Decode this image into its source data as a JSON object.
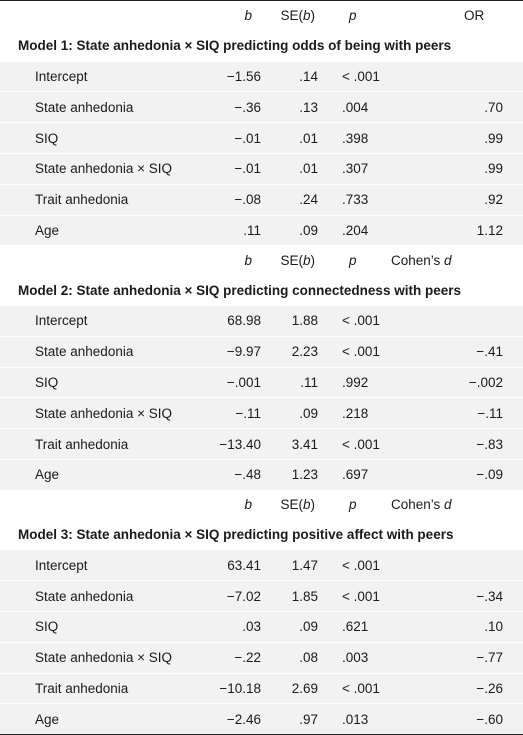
{
  "header": {
    "b": "b",
    "se_prefix": "SE(",
    "se_var": "b",
    "se_suffix": ")",
    "p": "p",
    "or": "OR",
    "cohen_prefix": "Cohen’s ",
    "cohen_var": "d"
  },
  "model1": {
    "title": "Model 1: State anhedonia × SIQ predicting odds of being with peers",
    "rows": [
      {
        "label": "Intercept",
        "b": "−1.56",
        "se": ".14",
        "p": "< .001",
        "or": ""
      },
      {
        "label": "State anhedonia",
        "b": "−.36",
        "se": ".13",
        "p": ".004",
        "or": ".70"
      },
      {
        "label": "SIQ",
        "b": "−.01",
        "se": ".01",
        "p": ".398",
        "or": ".99"
      },
      {
        "label": "State anhedonia × SIQ",
        "b": "−.01",
        "se": ".01",
        "p": ".307",
        "or": ".99"
      },
      {
        "label": "Trait anhedonia",
        "b": "−.08",
        "se": ".24",
        "p": ".733",
        "or": ".92"
      },
      {
        "label": "Age",
        "b": ".11",
        "se": ".09",
        "p": ".204",
        "or": "1.12"
      }
    ]
  },
  "model2": {
    "title": "Model 2: State anhedonia × SIQ predicting connectedness with peers",
    "rows": [
      {
        "label": "Intercept",
        "b": "68.98",
        "se": "1.88",
        "p": "< .001",
        "d": ""
      },
      {
        "label": "State anhedonia",
        "b": "−9.97",
        "se": "2.23",
        "p": "< .001",
        "d": "−.41"
      },
      {
        "label": "SIQ",
        "b": "−.001",
        "se": ".11",
        "p": ".992",
        "d": "−.002"
      },
      {
        "label": "State anhedonia × SIQ",
        "b": "−.11",
        "se": ".09",
        "p": ".218",
        "d": "−.11"
      },
      {
        "label": "Trait anhedonia",
        "b": "−13.40",
        "se": "3.41",
        "p": "< .001",
        "d": "−.83"
      },
      {
        "label": "Age",
        "b": "−.48",
        "se": "1.23",
        "p": ".697",
        "d": "−.09"
      }
    ]
  },
  "model3": {
    "title": "Model 3: State anhedonia × SIQ predicting positive affect with peers",
    "rows": [
      {
        "label": "Intercept",
        "b": "63.41",
        "se": "1.47",
        "p": "< .001",
        "d": ""
      },
      {
        "label": "State anhedonia",
        "b": "−7.02",
        "se": "1.85",
        "p": "< .001",
        "d": "−.34"
      },
      {
        "label": "SIQ",
        "b": ".03",
        "se": ".09",
        "p": ".621",
        "d": ".10"
      },
      {
        "label": "State anhedonia × SIQ",
        "b": "−.22",
        "se": ".08",
        "p": ".003",
        "d": "−.77"
      },
      {
        "label": "Trait anhedonia",
        "b": "−10.18",
        "se": "2.69",
        "p": "< .001",
        "d": "−.26"
      },
      {
        "label": "Age",
        "b": "−2.46",
        "se": ".97",
        "p": ".013",
        "d": "−.60"
      }
    ]
  }
}
